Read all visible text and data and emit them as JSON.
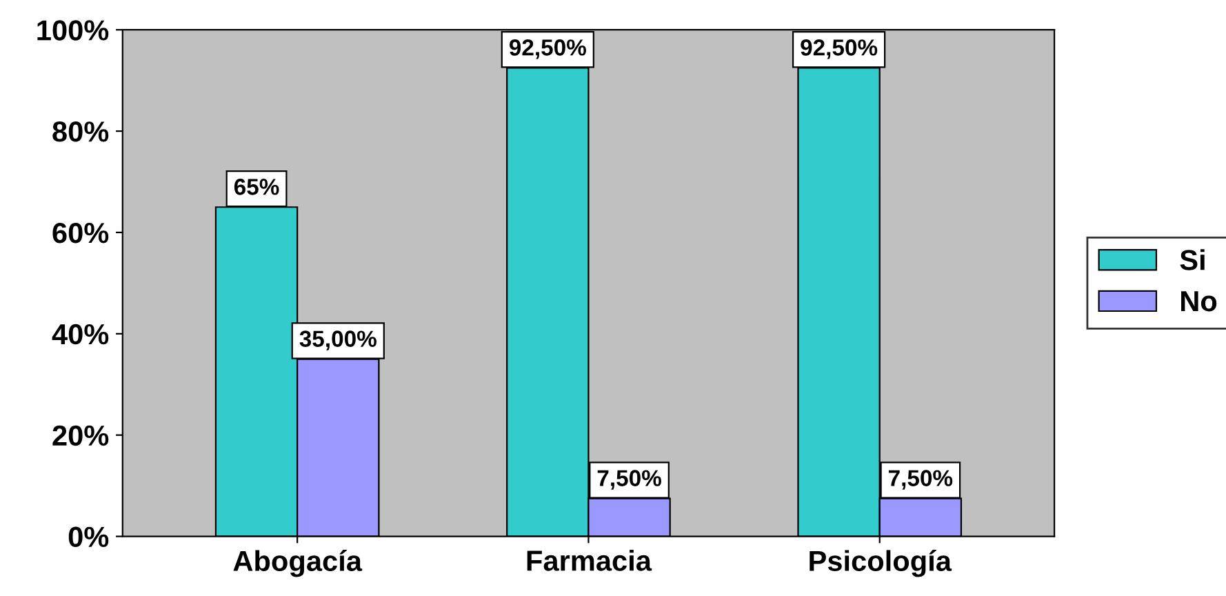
{
  "chart_data": {
    "type": "bar",
    "categories": [
      "Abogacía",
      "Farmacia",
      "Psicología"
    ],
    "series": [
      {
        "name": "Si",
        "color": "#33cccc",
        "values": [
          65,
          92.5,
          92.5
        ],
        "value_labels": [
          "65%",
          "92,50%",
          "92,50%"
        ]
      },
      {
        "name": "No",
        "color": "#9999ff",
        "values": [
          35,
          7.5,
          7.5
        ],
        "value_labels": [
          "35,00%",
          "7,50%",
          "7,50%"
        ]
      }
    ],
    "ylim": [
      0,
      100
    ],
    "yticks": [
      {
        "value": 0,
        "label": "0%"
      },
      {
        "value": 20,
        "label": "20%"
      },
      {
        "value": 40,
        "label": "40%"
      },
      {
        "value": 60,
        "label": "60%"
      },
      {
        "value": 80,
        "label": "80%"
      },
      {
        "value": 100,
        "label": "100%"
      }
    ],
    "grid": false,
    "legend": "right"
  }
}
